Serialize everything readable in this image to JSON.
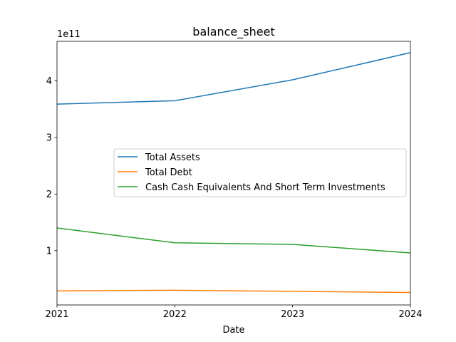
{
  "chart_data": {
    "type": "line",
    "title": "balance_sheet",
    "xlabel": "Date",
    "ylabel": "",
    "y_offset_label": "1e11",
    "y_scale": 100000000000.0,
    "x": [
      2021,
      2022,
      2023,
      2024
    ],
    "x_tick_labels": [
      "2021",
      "2022",
      "2023",
      "2024"
    ],
    "xlim": [
      2021,
      2024
    ],
    "ylim": [
      0.04,
      4.7
    ],
    "y_ticks": [
      1,
      2,
      3,
      4
    ],
    "y_tick_labels": [
      "1",
      "2",
      "3",
      "4"
    ],
    "grid": false,
    "legend_position": "center-right",
    "series": [
      {
        "name": "Total Assets",
        "color": "#1f77b4",
        "values": [
          3.59,
          3.65,
          4.02,
          4.5
        ]
      },
      {
        "name": "Total Debt",
        "color": "#ff7f0e",
        "values": [
          0.29,
          0.3,
          0.28,
          0.26
        ]
      },
      {
        "name": "Cash Cash Equivalents And Short Term Investments",
        "color": "#2ca02c",
        "values": [
          1.4,
          1.14,
          1.11,
          0.96
        ]
      }
    ]
  }
}
